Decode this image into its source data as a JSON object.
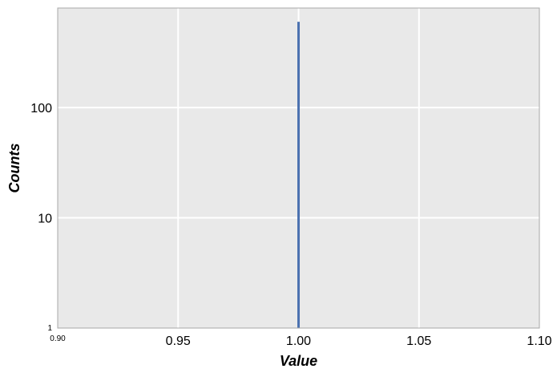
{
  "chart_data": {
    "type": "bar",
    "title": "",
    "xlabel": "Value",
    "ylabel": "Counts",
    "x_scale": "linear",
    "y_scale": "log",
    "xlim": [
      0.9,
      1.1
    ],
    "ylim": [
      1,
      800
    ],
    "grid": true,
    "x_ticks": [
      {
        "value": 0.9,
        "label": "0.90"
      },
      {
        "value": 0.95,
        "label": "0.95"
      },
      {
        "value": 1.0,
        "label": "1.00"
      },
      {
        "value": 1.05,
        "label": "1.05"
      },
      {
        "value": 1.1,
        "label": "1.10"
      }
    ],
    "y_ticks": [
      {
        "value": 1,
        "label": "1"
      },
      {
        "value": 10,
        "label": "10"
      },
      {
        "value": 100,
        "label": "100"
      }
    ],
    "bars": [
      {
        "x": 1.0,
        "value": 600
      }
    ],
    "colors": {
      "background": "#e9e9e9",
      "grid": "#ffffff",
      "frame": "#a8a8a8",
      "bar": "#4c72b0"
    }
  }
}
